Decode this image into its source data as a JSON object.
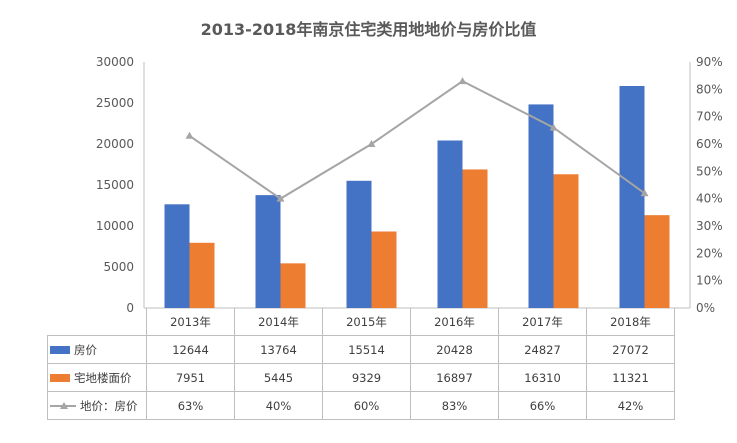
{
  "chart_data": {
    "type": "bar",
    "title": "2013-2018年南京住宅类用地地价与房价比值",
    "categories": [
      "2013年",
      "2014年",
      "2015年",
      "2016年",
      "2017年",
      "2018年"
    ],
    "series": [
      {
        "name": "房价",
        "type": "bar",
        "axis": "left",
        "color": "#4472c4",
        "values": [
          12644,
          13764,
          15514,
          20428,
          24827,
          27072
        ]
      },
      {
        "name": "宅地楼面价",
        "type": "bar",
        "axis": "left",
        "color": "#ed7d31",
        "values": [
          7951,
          5445,
          9329,
          16897,
          16310,
          11321
        ]
      },
      {
        "name": "地价：房价",
        "type": "line",
        "axis": "right",
        "color": "#a5a5a5",
        "values": [
          63,
          40,
          60,
          83,
          66,
          42
        ]
      }
    ],
    "ylim": [
      0,
      30000
    ],
    "y_ticks": [
      "0",
      "5000",
      "10000",
      "15000",
      "20000",
      "25000",
      "30000"
    ],
    "y2lim": [
      0,
      90
    ],
    "y2_ticks": [
      "0%",
      "10%",
      "20%",
      "30%",
      "40%",
      "50%",
      "60%",
      "70%",
      "80%",
      "90%"
    ],
    "grid": false,
    "legend": "data-table"
  },
  "table_rows": [
    {
      "label": "房价",
      "key": "bar",
      "color": "#4472c4",
      "cells": [
        "12644",
        "13764",
        "15514",
        "20428",
        "24827",
        "27072"
      ]
    },
    {
      "label": "宅地楼面价",
      "key": "bar",
      "color": "#ed7d31",
      "cells": [
        "7951",
        "5445",
        "9329",
        "16897",
        "16310",
        "11321"
      ]
    },
    {
      "label": "地价：房价",
      "key": "line",
      "color": "#a5a5a5",
      "cells": [
        "63%",
        "40%",
        "60%",
        "83%",
        "66%",
        "42%"
      ]
    }
  ]
}
